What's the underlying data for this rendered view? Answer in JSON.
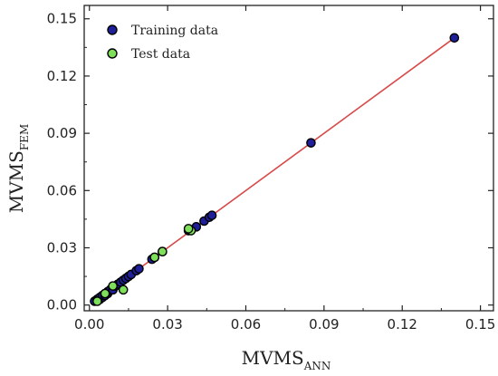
{
  "chart_data": {
    "type": "scatter",
    "title": "",
    "xlabel": {
      "main": "MVMS",
      "sub": "ANN"
    },
    "ylabel": {
      "main": "MVMS",
      "sub": "FEM"
    },
    "xlim": [
      -0.002,
      0.155
    ],
    "ylim": [
      -0.003,
      0.157
    ],
    "xticks": [
      0.0,
      0.03,
      0.06,
      0.09,
      0.12,
      0.15
    ],
    "xtick_labels": [
      "0.00",
      "0.03",
      "0.06",
      "0.09",
      "0.12",
      "0.15"
    ],
    "yticks": [
      0.0,
      0.03,
      0.06,
      0.09,
      0.12,
      0.15
    ],
    "ytick_labels": [
      "0.00",
      "0.03",
      "0.06",
      "0.09",
      "0.12",
      "0.15"
    ],
    "grid": false,
    "legend_position": "top-left",
    "fit_line": {
      "x": [
        0.002,
        0.14
      ],
      "y": [
        0.002,
        0.14
      ],
      "color": "#d94a4a"
    },
    "series": [
      {
        "name": "Training data",
        "color": "#1f1f9a",
        "edge_color": "#000000",
        "points": [
          [
            0.002,
            0.002
          ],
          [
            0.003,
            0.003
          ],
          [
            0.004,
            0.003
          ],
          [
            0.004,
            0.004
          ],
          [
            0.005,
            0.004
          ],
          [
            0.005,
            0.005
          ],
          [
            0.006,
            0.006
          ],
          [
            0.006,
            0.005
          ],
          [
            0.007,
            0.006
          ],
          [
            0.007,
            0.007
          ],
          [
            0.008,
            0.008
          ],
          [
            0.009,
            0.008
          ],
          [
            0.01,
            0.01
          ],
          [
            0.011,
            0.011
          ],
          [
            0.012,
            0.012
          ],
          [
            0.013,
            0.013
          ],
          [
            0.014,
            0.014
          ],
          [
            0.015,
            0.015
          ],
          [
            0.016,
            0.016
          ],
          [
            0.018,
            0.018
          ],
          [
            0.019,
            0.019
          ],
          [
            0.024,
            0.024
          ],
          [
            0.025,
            0.025
          ],
          [
            0.028,
            0.028
          ],
          [
            0.038,
            0.039
          ],
          [
            0.041,
            0.041
          ],
          [
            0.044,
            0.044
          ],
          [
            0.046,
            0.046
          ],
          [
            0.047,
            0.047
          ],
          [
            0.085,
            0.085
          ],
          [
            0.14,
            0.14
          ]
        ]
      },
      {
        "name": "Test data",
        "color": "#7ee05a",
        "edge_color": "#000000",
        "points": [
          [
            0.003,
            0.002
          ],
          [
            0.006,
            0.006
          ],
          [
            0.009,
            0.01
          ],
          [
            0.013,
            0.008
          ],
          [
            0.025,
            0.025
          ],
          [
            0.028,
            0.028
          ],
          [
            0.039,
            0.039
          ],
          [
            0.038,
            0.04
          ]
        ]
      }
    ]
  }
}
